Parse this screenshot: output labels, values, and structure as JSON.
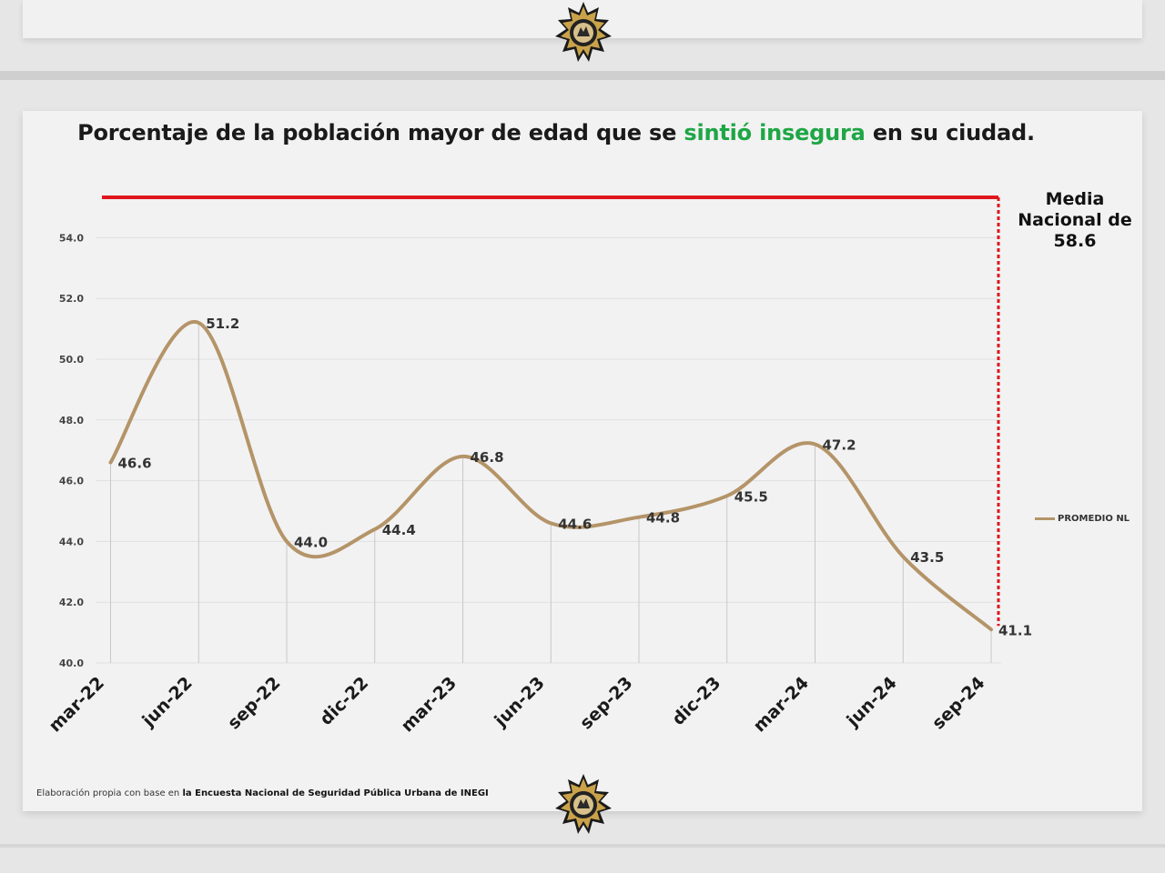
{
  "title": {
    "part1": "Porcentaje de la población mayor de edad que se ",
    "highlight": "sintió insegura",
    "part2": " en su ciudad."
  },
  "national_average": {
    "line1": "Media",
    "line2": "Nacional de",
    "line3": "58.6"
  },
  "source": {
    "prefix": "Elaboración propia con base en ",
    "bold": "la Encuesta Nacional de Seguridad Pública Urbana de INEGI"
  },
  "colors": {
    "series": "#b49468",
    "reference_line": "#e0161b",
    "highlight_text": "#1fa646"
  },
  "icons": [
    "police-badge-icon"
  ],
  "chart_data": {
    "type": "line",
    "title": "Porcentaje de la población mayor de edad que se sintió insegura en su ciudad.",
    "categories": [
      "mar-22",
      "jun-22",
      "sep-22",
      "dic-22",
      "mar-23",
      "jun-23",
      "sep-23",
      "dic-23",
      "mar-24",
      "jun-24",
      "sep-24"
    ],
    "series": [
      {
        "name": "PROMEDIO NL",
        "values": [
          46.6,
          51.2,
          44.0,
          44.4,
          46.8,
          44.6,
          44.8,
          45.5,
          47.2,
          43.5,
          41.1
        ],
        "labels": [
          "46.6",
          "51.2",
          "44.0",
          "44.4",
          "46.8",
          "44.6",
          "44.8",
          "45.5",
          "47.2",
          "43.5",
          "41.1"
        ]
      }
    ],
    "reference_line": {
      "value": 58.6
    },
    "yticks": [
      "40.0",
      "42.0",
      "44.0",
      "46.0",
      "48.0",
      "50.0",
      "52.0",
      "54.0"
    ],
    "ylim": [
      40,
      54
    ],
    "grid": true,
    "legend": "right",
    "smooth": true
  }
}
